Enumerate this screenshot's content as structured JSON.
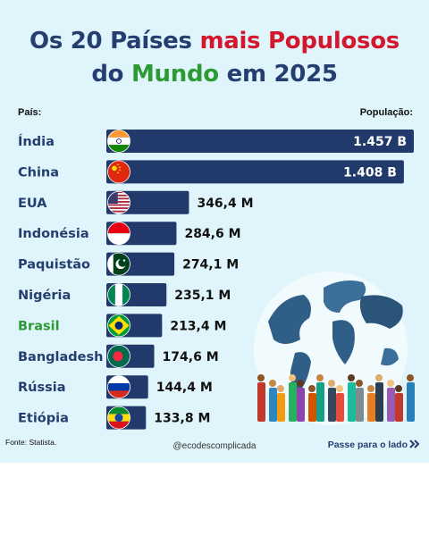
{
  "title": {
    "line1_a": "Os 20 Países ",
    "line1_b": "mais Populosos",
    "line2_a": "do ",
    "line2_b": "Mundo",
    "line2_c": " em 2025"
  },
  "headers": {
    "country": "País:",
    "population": "População:"
  },
  "colors": {
    "bar": "#223a6b",
    "title": "#253e70",
    "accent_red": "#d3172c",
    "accent_green": "#2c9b33",
    "background": "#dff4fb"
  },
  "chart_data": {
    "type": "bar",
    "orientation": "horizontal",
    "unit": "millions",
    "categories": [
      "Índia",
      "China",
      "EUA",
      "Indonésia",
      "Paquistão",
      "Nigéria",
      "Brasil",
      "Bangladesh",
      "Rússia",
      "Etiópia"
    ],
    "values": [
      1457,
      1408,
      346.4,
      284.6,
      274.1,
      235.1,
      213.4,
      174.6,
      144.4,
      133.8
    ],
    "value_labels": [
      "1.457 B",
      "1.408 B",
      "346,4 M",
      "284,6 M",
      "274,1 M",
      "235,1 M",
      "213,4 M",
      "174,6 M",
      "144,4 M",
      "133,8 M"
    ],
    "flags": [
      "india-flag-icon",
      "china-flag-icon",
      "usa-flag-icon",
      "indonesia-flag-icon",
      "pakistan-flag-icon",
      "nigeria-flag-icon",
      "brazil-flag-icon",
      "bangladesh-flag-icon",
      "russia-flag-icon",
      "ethiopia-flag-icon"
    ],
    "highlight": "Brasil",
    "illustration": "world-map-with-people-illustration"
  },
  "footer": {
    "source": "Fonte: Statista.",
    "handle": "@ecodescomplicada",
    "next": "Passe para o lado",
    "next_icon": "double-chevron-right-icon"
  }
}
